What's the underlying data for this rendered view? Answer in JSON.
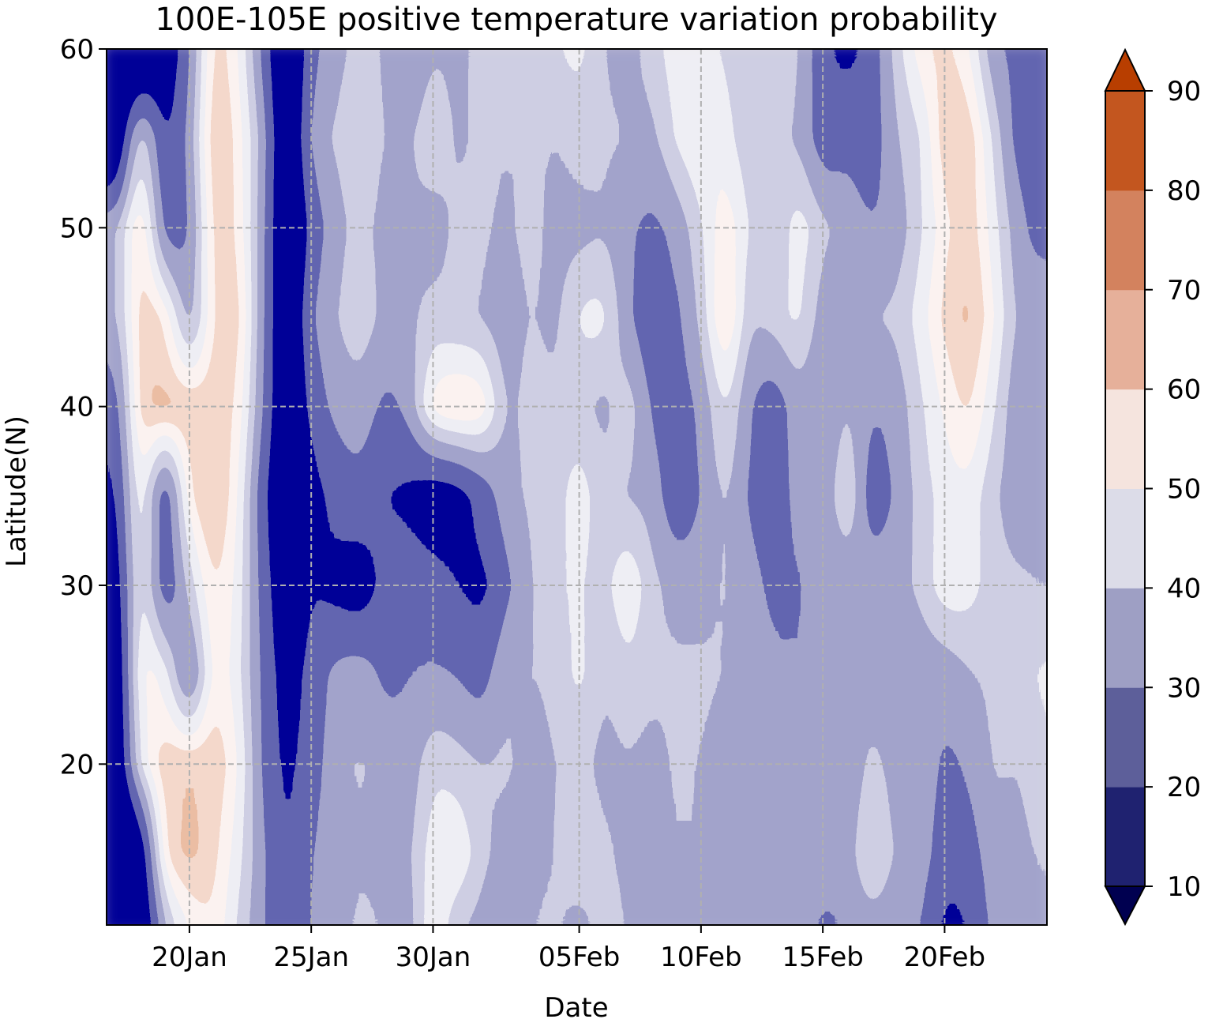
{
  "chart_data": {
    "type": "heatmap",
    "subtype": "filled-contour",
    "title": "100E-105E positive temperature variation probability",
    "xlabel": "Date",
    "ylabel": "Latitude(N)",
    "x_ticks": [
      "20Jan",
      "25Jan",
      "30Jan",
      "05Feb",
      "10Feb",
      "15Feb",
      "20Feb"
    ],
    "x_range": [
      "17Jan",
      "24Feb"
    ],
    "y_ticks": [
      20,
      30,
      40,
      50,
      60
    ],
    "y_range": [
      11,
      60
    ],
    "grid": true,
    "grid_style": "dashed",
    "colorbar": {
      "levels": [
        10,
        20,
        30,
        40,
        50,
        60,
        70,
        80,
        90
      ],
      "tick_labels": [
        "10",
        "20",
        "30",
        "40",
        "50",
        "60",
        "70",
        "80",
        "90"
      ],
      "extend": "both",
      "colors": [
        "#000050",
        "#1f2270",
        "#5d5f9a",
        "#9e9fc4",
        "#dcdce8",
        "#f5e4de",
        "#e6b09a",
        "#d3825e",
        "#c3561f",
        "#b83e00"
      ]
    },
    "dates": [
      "17Jan",
      "18Jan",
      "19Jan",
      "20Jan",
      "21Jan",
      "22Jan",
      "23Jan",
      "24Jan",
      "25Jan",
      "26Jan",
      "27Jan",
      "28Jan",
      "29Jan",
      "30Jan",
      "31Jan",
      "01Feb",
      "02Feb",
      "03Feb",
      "04Feb",
      "05Feb",
      "06Feb",
      "07Feb",
      "08Feb",
      "09Feb",
      "10Feb",
      "11Feb",
      "12Feb",
      "13Feb",
      "14Feb",
      "15Feb",
      "16Feb",
      "17Feb",
      "18Feb",
      "19Feb",
      "20Feb",
      "21Feb",
      "22Feb",
      "23Feb",
      "24Feb"
    ],
    "latitudes": [
      11,
      15,
      20,
      25,
      30,
      35,
      40,
      45,
      50,
      55,
      60
    ],
    "values": [
      [
        5,
        8,
        60,
        75,
        80,
        65,
        50,
        32,
        50,
        55,
        60,
        58,
        52,
        75,
        60,
        55,
        52,
        58,
        60,
        55,
        62,
        58,
        50,
        55,
        52,
        48,
        55,
        52,
        55,
        45,
        50,
        55,
        52,
        50,
        30,
        35,
        52,
        55,
        55
      ],
      [
        5,
        15,
        82,
        88,
        82,
        70,
        50,
        32,
        48,
        55,
        58,
        55,
        55,
        72,
        75,
        60,
        55,
        56,
        58,
        65,
        60,
        56,
        55,
        58,
        58,
        52,
        58,
        52,
        58,
        55,
        52,
        70,
        56,
        55,
        40,
        42,
        55,
        55,
        60
      ],
      [
        8,
        70,
        85,
        85,
        85,
        75,
        45,
        30,
        42,
        55,
        60,
        55,
        52,
        65,
        62,
        58,
        60,
        55,
        58,
        62,
        55,
        58,
        55,
        60,
        58,
        55,
        55,
        52,
        55,
        52,
        50,
        62,
        54,
        56,
        45,
        50,
        60,
        58,
        65
      ],
      [
        10,
        78,
        72,
        40,
        80,
        70,
        45,
        25,
        40,
        52,
        55,
        45,
        48,
        50,
        48,
        42,
        58,
        58,
        60,
        70,
        58,
        65,
        60,
        60,
        60,
        58,
        55,
        50,
        48,
        50,
        52,
        55,
        50,
        52,
        52,
        58,
        60,
        62,
        68
      ],
      [
        20,
        75,
        35,
        62,
        82,
        72,
        42,
        18,
        35,
        30,
        25,
        40,
        42,
        40,
        35,
        30,
        45,
        58,
        65,
        68,
        62,
        75,
        60,
        55,
        55,
        60,
        52,
        45,
        48,
        50,
        52,
        55,
        55,
        60,
        72,
        70,
        62,
        60,
        58
      ],
      [
        30,
        78,
        32,
        80,
        88,
        75,
        38,
        12,
        28,
        40,
        45,
        35,
        32,
        25,
        28,
        40,
        55,
        60,
        62,
        72,
        60,
        58,
        55,
        38,
        48,
        62,
        45,
        42,
        52,
        48,
        70,
        38,
        50,
        62,
        70,
        72,
        60,
        52,
        55
      ],
      [
        40,
        85,
        88,
        85,
        84,
        80,
        48,
        10,
        40,
        52,
        55,
        45,
        50,
        78,
        82,
        80,
        55,
        62,
        60,
        62,
        55,
        65,
        45,
        42,
        50,
        70,
        48,
        40,
        55,
        48,
        60,
        48,
        52,
        65,
        75,
        82,
        68,
        50,
        55
      ],
      [
        55,
        85,
        80,
        50,
        82,
        85,
        50,
        8,
        48,
        58,
        65,
        55,
        56,
        62,
        60,
        58,
        52,
        60,
        55,
        68,
        70,
        50,
        38,
        45,
        60,
        85,
        58,
        62,
        70,
        52,
        55,
        58,
        60,
        70,
        82,
        88,
        75,
        55,
        58
      ],
      [
        55,
        85,
        40,
        45,
        85,
        80,
        52,
        5,
        40,
        55,
        62,
        55,
        58,
        52,
        62,
        60,
        56,
        62,
        55,
        55,
        58,
        50,
        45,
        52,
        65,
        80,
        65,
        58,
        72,
        60,
        55,
        48,
        52,
        65,
        78,
        85,
        70,
        52,
        42
      ],
      [
        8,
        70,
        30,
        50,
        88,
        78,
        55,
        5,
        52,
        60,
        65,
        58,
        55,
        68,
        55,
        62,
        58,
        60,
        58,
        62,
        60,
        58,
        55,
        68,
        75,
        70,
        60,
        60,
        58,
        40,
        45,
        40,
        58,
        65,
        85,
        85,
        65,
        42,
        42
      ],
      [
        5,
        10,
        20,
        45,
        85,
        75,
        45,
        5,
        45,
        55,
        62,
        58,
        45,
        58,
        55,
        62,
        58,
        60,
        65,
        70,
        58,
        55,
        62,
        72,
        70,
        65,
        60,
        65,
        60,
        38,
        30,
        40,
        62,
        78,
        82,
        75,
        50,
        45,
        48
      ]
    ]
  }
}
